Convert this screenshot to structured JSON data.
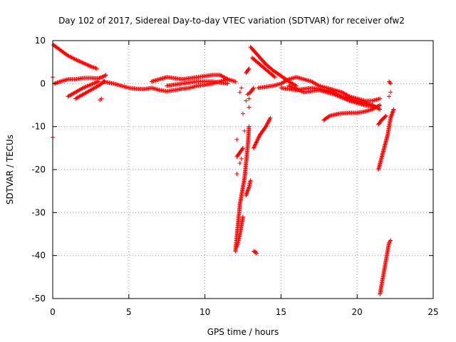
{
  "chart_data": {
    "type": "scatter",
    "title": "Day 102 of 2017, Sidereal Day-to-day VTEC variation (SDTVAR) for receiver ofw2",
    "xlabel": "GPS time / hours",
    "ylabel": "SDTVAR / TECUs",
    "xlim": [
      0,
      25
    ],
    "ylim": [
      -50,
      10
    ],
    "xticks": [
      "0",
      "5",
      "10",
      "15",
      "20",
      "25"
    ],
    "yticks": [
      "10",
      "0",
      "-10",
      "-20",
      "-30",
      "-40",
      "-50"
    ],
    "grid": true,
    "marker": "+",
    "color": "#ff0000",
    "tracks": [
      [
        [
          0.05,
          9.0
        ],
        [
          0.5,
          7.8
        ],
        [
          1.0,
          6.5
        ],
        [
          1.5,
          5.6
        ],
        [
          2.0,
          4.8
        ],
        [
          2.5,
          4.0
        ],
        [
          2.9,
          3.5
        ]
      ],
      [
        [
          0.1,
          0.0
        ],
        [
          0.5,
          0.5
        ],
        [
          1.0,
          1.0
        ],
        [
          1.5,
          1.0
        ],
        [
          2.0,
          1.3
        ],
        [
          2.5,
          1.3
        ],
        [
          3.0,
          1.2
        ],
        [
          3.3,
          1.6
        ],
        [
          3.5,
          2.0
        ]
      ],
      [
        [
          1.5,
          -3.5
        ],
        [
          2.0,
          -2.5
        ],
        [
          2.5,
          -1.5
        ],
        [
          3.0,
          -0.5
        ],
        [
          3.4,
          0.5
        ]
      ],
      [
        [
          1.0,
          -3.0
        ],
        [
          2.0,
          -1.0
        ],
        [
          3.0,
          0.5
        ]
      ],
      [
        [
          3.3,
          0.5
        ],
        [
          4.0,
          0.0
        ],
        [
          4.5,
          -0.5
        ],
        [
          5.0,
          -1.0
        ],
        [
          5.5,
          -1.2
        ],
        [
          6.0,
          -1.3
        ],
        [
          6.5,
          -1.0
        ],
        [
          7.0,
          -1.5
        ],
        [
          7.5,
          -1.8
        ],
        [
          8.0,
          -1.5
        ],
        [
          8.5,
          -1.2
        ],
        [
          9.0,
          -1.0
        ],
        [
          9.5,
          -0.5
        ],
        [
          10.0,
          -0.3
        ],
        [
          10.5,
          0.0
        ],
        [
          11.0,
          0.5
        ],
        [
          11.5,
          1.0
        ],
        [
          12.0,
          0.5
        ]
      ],
      [
        [
          6.5,
          0.5
        ],
        [
          7.5,
          1.5
        ],
        [
          8.5,
          1.0
        ],
        [
          9.5,
          1.5
        ],
        [
          10.5,
          2.0
        ],
        [
          11.0,
          2.0
        ],
        [
          11.5,
          1.0
        ]
      ],
      [
        [
          7.5,
          -0.5
        ],
        [
          8.5,
          0.0
        ],
        [
          9.5,
          0.5
        ],
        [
          10.5,
          0.5
        ],
        [
          11.5,
          0.0
        ]
      ],
      [
        [
          12.0,
          -39.0
        ],
        [
          12.3,
          -28.0
        ],
        [
          12.6,
          -22.0
        ],
        [
          12.8,
          -15.0
        ],
        [
          12.9,
          -10.0
        ]
      ],
      [
        [
          12.1,
          -38.0
        ],
        [
          12.3,
          -35.0
        ],
        [
          12.5,
          -31.0
        ]
      ],
      [
        [
          12.1,
          -17.0
        ],
        [
          12.3,
          -16.0
        ],
        [
          12.5,
          -15.0
        ]
      ],
      [
        [
          12.7,
          -26.0
        ],
        [
          12.9,
          -24.0
        ],
        [
          13.0,
          -22.5
        ]
      ],
      [
        [
          12.8,
          -2.5
        ],
        [
          13.0,
          -2.0
        ],
        [
          13.2,
          -1.0
        ]
      ],
      [
        [
          12.7,
          2.5
        ],
        [
          12.9,
          3.5
        ]
      ],
      [
        [
          13.0,
          8.5
        ],
        [
          13.5,
          6.5
        ],
        [
          14.0,
          4.5
        ],
        [
          14.5,
          3.0
        ],
        [
          15.0,
          1.8
        ],
        [
          15.5,
          0.5
        ],
        [
          16.0,
          -0.5
        ]
      ],
      [
        [
          13.1,
          6.0
        ],
        [
          13.6,
          4.5
        ],
        [
          14.1,
          3.0
        ],
        [
          14.6,
          1.5
        ]
      ],
      [
        [
          13.2,
          -15.0
        ],
        [
          13.6,
          -12.0
        ],
        [
          14.0,
          -10.0
        ],
        [
          14.3,
          -8.0
        ]
      ],
      [
        [
          13.2,
          -39.0
        ],
        [
          13.4,
          -39.5
        ]
      ],
      [
        [
          13.5,
          -1.0
        ],
        [
          14.5,
          -0.5
        ],
        [
          15.0,
          0.0
        ],
        [
          15.5,
          1.0
        ],
        [
          16.0,
          1.5
        ],
        [
          16.5,
          1.0
        ],
        [
          17.0,
          0.5
        ],
        [
          17.5,
          -0.5
        ],
        [
          18.0,
          -1.0
        ],
        [
          18.5,
          -1.5
        ],
        [
          19.0,
          -2.0
        ],
        [
          19.5,
          -3.0
        ],
        [
          20.0,
          -3.5
        ],
        [
          20.5,
          -4.0
        ],
        [
          21.0,
          -4.0
        ],
        [
          21.5,
          -3.5
        ]
      ],
      [
        [
          15.0,
          -1.0
        ],
        [
          16.0,
          -1.5
        ],
        [
          17.0,
          -1.0
        ],
        [
          18.0,
          -1.5
        ],
        [
          19.0,
          -3.0
        ],
        [
          20.0,
          -4.0
        ],
        [
          21.0,
          -5.0
        ],
        [
          21.5,
          -6.0
        ]
      ],
      [
        [
          17.8,
          -8.5
        ],
        [
          18.2,
          -7.5
        ],
        [
          18.8,
          -7.0
        ],
        [
          19.5,
          -6.8
        ],
        [
          20.0,
          -6.8
        ],
        [
          20.5,
          -6.5
        ],
        [
          21.0,
          -6.0
        ],
        [
          21.5,
          -5.0
        ]
      ],
      [
        [
          15.5,
          -0.5
        ],
        [
          16.5,
          -2.0
        ],
        [
          17.5,
          -1.5
        ],
        [
          18.5,
          -2.5
        ],
        [
          19.5,
          -4.0
        ],
        [
          20.5,
          -5.0
        ],
        [
          21.3,
          -5.5
        ]
      ],
      [
        [
          21.4,
          -20.0
        ],
        [
          21.7,
          -16.0
        ],
        [
          22.0,
          -12.0
        ],
        [
          22.2,
          -8.0
        ],
        [
          22.4,
          -6.0
        ]
      ],
      [
        [
          21.4,
          -9.5
        ],
        [
          21.6,
          -8.5
        ],
        [
          21.9,
          -7.5
        ]
      ],
      [
        [
          21.5,
          -49.0
        ],
        [
          21.7,
          -45.0
        ],
        [
          21.9,
          -41.0
        ],
        [
          22.1,
          -37.0
        ],
        [
          22.2,
          -36.5
        ]
      ],
      [
        [
          22.1,
          0.5
        ],
        [
          22.2,
          0.0
        ]
      ],
      [
        [
          22.2,
          -2.0
        ]
      ]
    ],
    "points": [
      [
        0.0,
        -12.5
      ],
      [
        0.0,
        1.5
      ],
      [
        3.1,
        -3.8
      ],
      [
        3.2,
        -3.5
      ],
      [
        12.1,
        -21.0
      ],
      [
        12.1,
        -13.0
      ],
      [
        12.3,
        -2.0
      ],
      [
        12.4,
        -1.0
      ],
      [
        12.5,
        -7.0
      ],
      [
        12.6,
        -11.0
      ],
      [
        12.7,
        -4.0
      ],
      [
        12.9,
        -5.5
      ],
      [
        12.9,
        -3.5
      ],
      [
        13.1,
        -1.5
      ],
      [
        12.4,
        -17.5
      ],
      [
        12.3,
        -18.5
      ],
      [
        22.1,
        -3.0
      ],
      [
        13.3,
        -39.0
      ]
    ]
  }
}
